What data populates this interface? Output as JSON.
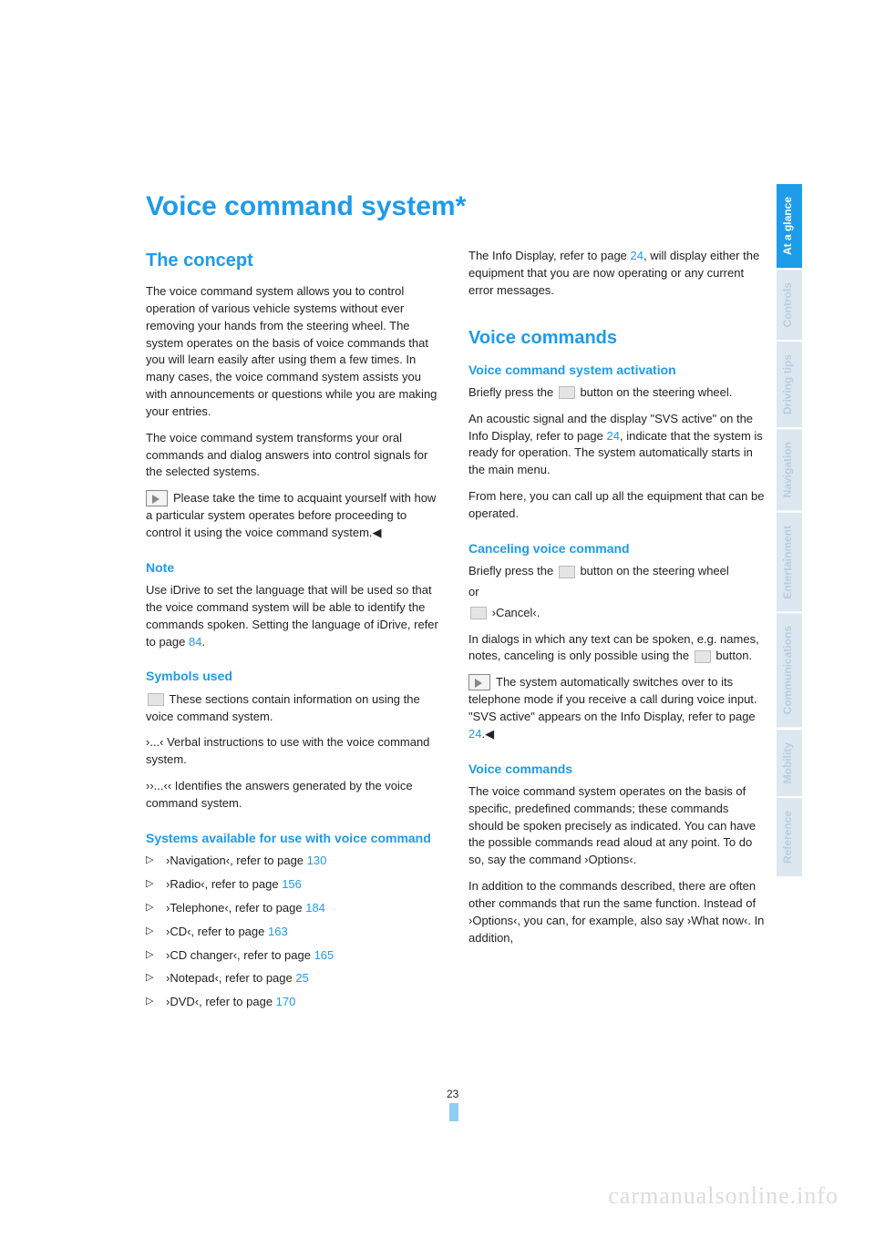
{
  "title": "Voice command system*",
  "section1": {
    "heading": "The concept",
    "p1": "The voice command system allows you to control operation of various vehicle systems without ever removing your hands from the steering wheel. The system operates on the basis of voice commands that you will learn easily after using them a few times. In many cases, the voice command system assists you with announcements or questions while you are making your entries.",
    "p2": "The voice command system transforms your oral commands and dialog answers into control signals for the selected systems.",
    "note": "Please take the time to acquaint yourself with how a particular system operates before proceeding to control it using the voice command system.◀"
  },
  "note_section": {
    "heading": "Note",
    "p_pre": "Use iDrive to set the language that will be used so that the voice command system will be able to identify the commands spoken. Setting the language of iDrive, refer to page ",
    "page": "84",
    "p_post": "."
  },
  "symbols": {
    "heading": "Symbols used",
    "s1": "These sections contain information on using the voice command system.",
    "s2": "›...‹ Verbal instructions to use with the voice command system.",
    "s3": "››...‹‹ Identifies the answers generated by the voice command system."
  },
  "systems": {
    "heading": "Systems available for use with voice command",
    "items": [
      {
        "label": "›Navigation‹, refer to page ",
        "page": "130"
      },
      {
        "label": "›Radio‹, refer to page ",
        "page": "156"
      },
      {
        "label": "›Telephone‹, refer to page ",
        "page": "184"
      },
      {
        "label": "›CD‹, refer to page ",
        "page": "163"
      },
      {
        "label": "›CD changer‹, refer to page ",
        "page": "165"
      },
      {
        "label": "›Notepad‹, refer to page ",
        "page": "25"
      },
      {
        "label": "›DVD‹, refer to page ",
        "page": "170"
      }
    ]
  },
  "right_intro": {
    "pre": "The Info Display, refer to page ",
    "page": "24",
    "post": ", will display either the equipment that you are now operating or any current error messages."
  },
  "voice_commands": {
    "heading": "Voice commands",
    "activation": {
      "heading": "Voice command system activation",
      "p1_pre": "Briefly press the ",
      "p1_post": " button on the steering wheel.",
      "p2_pre": "An acoustic signal and the display \"SVS active\" on the Info Display, refer to page ",
      "p2_page": "24",
      "p2_post": ", indicate that the system is ready for operation. The system automatically starts in the main menu.",
      "p3": "From here, you can call up all the equipment that can be operated."
    },
    "cancel": {
      "heading": "Canceling voice command",
      "p1_pre": "Briefly press the ",
      "p1_post": " button on the steering wheel",
      "or": "or",
      "cmd": " ›Cancel‹.",
      "p2_pre": "In dialogs in which any text can be spoken, e.g. names, notes, canceling is only possible using the ",
      "p2_post": " button.",
      "note_pre": "The system automatically switches over to its telephone mode if you receive a call during voice input. \"SVS active\" appears on the Info Display, refer to page ",
      "note_page": "24",
      "note_post": ".◀"
    },
    "vc": {
      "heading": "Voice commands",
      "p1": "The voice command system operates on the basis of specific, predefined commands; these commands should be spoken precisely as indicated. You can have the possible commands read aloud at any point. To do so, say the command ›Options‹.",
      "p2": "In addition to the commands described, there are often other commands that run the same function. Instead of ›Options‹, you can, for example, also say ›What now‹. In addition,"
    }
  },
  "page_number": "23",
  "tabs": [
    "At a glance",
    "Controls",
    "Driving tips",
    "Navigation",
    "Entertainment",
    "Communications",
    "Mobility",
    "Reference"
  ],
  "active_tab": 0,
  "watermark": "carmanualsonline.info",
  "colors": {
    "accent": "#1e9be9"
  }
}
